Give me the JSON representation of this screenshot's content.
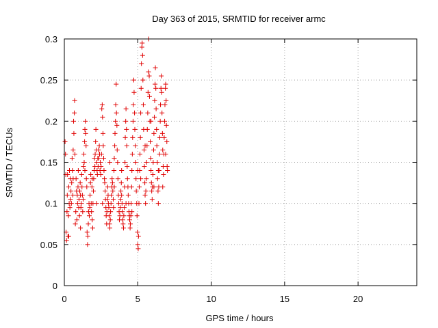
{
  "chart_data": {
    "type": "scatter",
    "title": "Day 363 of 2015, SRMTID for receiver armc",
    "xlabel": "GPS time / hours",
    "ylabel": "SRMTID / TECUs",
    "xlim": [
      0,
      24
    ],
    "ylim": [
      0,
      0.3
    ],
    "x_ticks": [
      0,
      5,
      10,
      15,
      20
    ],
    "x_tick_labels": [
      "0",
      "5",
      "10",
      "15",
      "20"
    ],
    "y_ticks": [
      0,
      0.05,
      0.1,
      0.15,
      0.2,
      0.25,
      0.3
    ],
    "y_tick_labels": [
      "0",
      "0.05",
      "0.1",
      "0.15",
      "0.2",
      "0.25",
      "0.3"
    ],
    "grid": true,
    "legend": "none",
    "marker": "plus",
    "series": [
      {
        "color": "#e00000",
        "points": [
          [
            0.05,
            0.175
          ],
          [
            0.08,
            0.16
          ],
          [
            0.1,
            0.135
          ],
          [
            0.12,
            0.065
          ],
          [
            0.15,
            0.055
          ],
          [
            0.18,
            0.09
          ],
          [
            0.2,
            0.11
          ],
          [
            0.22,
            0.135
          ],
          [
            0.25,
            0.06
          ],
          [
            0.28,
            0.085
          ],
          [
            0.3,
            0.12
          ],
          [
            0.33,
            0.1
          ],
          [
            0.35,
            0.14
          ],
          [
            0.38,
            0.095
          ],
          [
            0.4,
            0.13
          ],
          [
            0.42,
            0.105
          ],
          [
            0.45,
            0.115
          ],
          [
            0.48,
            0.1
          ],
          [
            0.5,
            0.125
          ],
          [
            0.53,
            0.155
          ],
          [
            0.55,
            0.14
          ],
          [
            0.58,
            0.11
          ],
          [
            0.6,
            0.165
          ],
          [
            0.63,
            0.2
          ],
          [
            0.65,
            0.185
          ],
          [
            0.68,
            0.21
          ],
          [
            0.7,
            0.225
          ],
          [
            0.72,
            0.16
          ],
          [
            0.75,
            0.075
          ],
          [
            0.78,
            0.09
          ],
          [
            0.8,
            0.13
          ],
          [
            0.83,
            0.115
          ],
          [
            0.85,
            0.08
          ],
          [
            0.88,
            0.11
          ],
          [
            0.9,
            0.1
          ],
          [
            0.93,
            0.12
          ],
          [
            0.95,
            0.14
          ],
          [
            0.98,
            0.095
          ],
          [
            1.0,
            0.105
          ],
          [
            1.03,
            0.085
          ],
          [
            1.05,
            0.115
          ],
          [
            1.08,
            0.125
          ],
          [
            1.1,
            0.11
          ],
          [
            1.13,
            0.095
          ],
          [
            1.15,
            0.1
          ],
          [
            1.18,
            0.135
          ],
          [
            1.2,
            0.12
          ],
          [
            1.23,
            0.11
          ],
          [
            1.25,
            0.09
          ],
          [
            1.28,
            0.105
          ],
          [
            1.3,
            0.145
          ],
          [
            1.33,
            0.16
          ],
          [
            1.35,
            0.15
          ],
          [
            1.38,
            0.175
          ],
          [
            1.4,
            0.19
          ],
          [
            1.43,
            0.2
          ],
          [
            1.45,
            0.185
          ],
          [
            1.48,
            0.17
          ],
          [
            1.5,
            0.13
          ],
          [
            1.53,
            0.12
          ],
          [
            1.55,
            0.065
          ],
          [
            1.58,
            0.05
          ],
          [
            1.6,
            0.06
          ],
          [
            1.63,
            0.075
          ],
          [
            1.65,
            0.09
          ],
          [
            1.68,
            0.1
          ],
          [
            1.7,
            0.085
          ],
          [
            1.73,
            0.095
          ],
          [
            1.75,
            0.11
          ],
          [
            1.78,
            0.125
          ],
          [
            1.8,
            0.135
          ],
          [
            1.83,
            0.1
          ],
          [
            1.85,
            0.09
          ],
          [
            1.88,
            0.12
          ],
          [
            1.9,
            0.08
          ],
          [
            1.93,
            0.07
          ],
          [
            1.95,
            0.1
          ],
          [
            1.98,
            0.115
          ],
          [
            2.0,
            0.13
          ],
          [
            2.03,
            0.14
          ],
          [
            2.05,
            0.155
          ],
          [
            2.08,
            0.145
          ],
          [
            2.1,
            0.16
          ],
          [
            2.13,
            0.175
          ],
          [
            2.15,
            0.19
          ],
          [
            2.18,
            0.165
          ],
          [
            2.2,
            0.15
          ],
          [
            2.23,
            0.14
          ],
          [
            2.25,
            0.135
          ],
          [
            2.28,
            0.155
          ],
          [
            2.3,
            0.145
          ],
          [
            2.33,
            0.165
          ],
          [
            2.35,
            0.155
          ],
          [
            2.38,
            0.17
          ],
          [
            2.4,
            0.16
          ],
          [
            2.43,
            0.14
          ],
          [
            2.45,
            0.15
          ],
          [
            2.48,
            0.135
          ],
          [
            2.5,
            0.145
          ],
          [
            2.53,
            0.16
          ],
          [
            2.55,
            0.215
          ],
          [
            2.58,
            0.22
          ],
          [
            2.6,
            0.205
          ],
          [
            2.63,
            0.185
          ],
          [
            2.65,
            0.17
          ],
          [
            2.68,
            0.155
          ],
          [
            2.7,
            0.14
          ],
          [
            2.73,
            0.13
          ],
          [
            2.75,
            0.125
          ],
          [
            2.78,
            0.115
          ],
          [
            2.8,
            0.105
          ],
          [
            2.83,
            0.095
          ],
          [
            2.85,
            0.085
          ],
          [
            2.88,
            0.075
          ],
          [
            2.9,
            0.09
          ],
          [
            2.93,
            0.105
          ],
          [
            2.95,
            0.12
          ],
          [
            2.98,
            0.11
          ],
          [
            3.0,
            0.1
          ],
          [
            3.03,
            0.095
          ],
          [
            3.05,
            0.085
          ],
          [
            3.08,
            0.075
          ],
          [
            3.1,
            0.07
          ],
          [
            3.13,
            0.08
          ],
          [
            3.15,
            0.09
          ],
          [
            3.18,
            0.1
          ],
          [
            3.2,
            0.11
          ],
          [
            3.23,
            0.12
          ],
          [
            3.25,
            0.13
          ],
          [
            3.28,
            0.125
          ],
          [
            3.3,
            0.115
          ],
          [
            3.33,
            0.105
          ],
          [
            3.35,
            0.095
          ],
          [
            3.38,
            0.14
          ],
          [
            3.4,
            0.155
          ],
          [
            3.43,
            0.17
          ],
          [
            3.45,
            0.185
          ],
          [
            3.48,
            0.2
          ],
          [
            3.5,
            0.22
          ],
          [
            3.53,
            0.245
          ],
          [
            3.55,
            0.21
          ],
          [
            3.58,
            0.195
          ],
          [
            3.6,
            0.165
          ],
          [
            3.63,
            0.15
          ],
          [
            3.65,
            0.13
          ],
          [
            3.68,
            0.11
          ],
          [
            3.7,
            0.1
          ],
          [
            3.73,
            0.09
          ],
          [
            3.75,
            0.08
          ],
          [
            3.78,
            0.085
          ],
          [
            3.8,
            0.095
          ],
          [
            3.83,
            0.105
          ],
          [
            3.85,
            0.115
          ],
          [
            3.88,
            0.125
          ],
          [
            3.9,
            0.11
          ],
          [
            3.93,
            0.1
          ],
          [
            3.95,
            0.09
          ],
          [
            3.98,
            0.08
          ],
          [
            4.0,
            0.075
          ],
          [
            4.03,
            0.07
          ],
          [
            4.05,
            0.085
          ],
          [
            4.08,
            0.095
          ],
          [
            4.1,
            0.12
          ],
          [
            4.13,
            0.15
          ],
          [
            4.15,
            0.18
          ],
          [
            4.18,
            0.2
          ],
          [
            4.2,
            0.215
          ],
          [
            4.23,
            0.19
          ],
          [
            4.25,
            0.17
          ],
          [
            4.28,
            0.145
          ],
          [
            4.3,
            0.13
          ],
          [
            4.33,
            0.12
          ],
          [
            4.35,
            0.11
          ],
          [
            4.38,
            0.1
          ],
          [
            4.4,
            0.09
          ],
          [
            4.43,
            0.085
          ],
          [
            4.45,
            0.08
          ],
          [
            4.48,
            0.07
          ],
          [
            4.5,
            0.075
          ],
          [
            4.53,
            0.085
          ],
          [
            4.55,
            0.1
          ],
          [
            4.58,
            0.12
          ],
          [
            4.6,
            0.14
          ],
          [
            4.63,
            0.16
          ],
          [
            4.65,
            0.18
          ],
          [
            4.68,
            0.2
          ],
          [
            4.7,
            0.22
          ],
          [
            4.73,
            0.25
          ],
          [
            4.75,
            0.235
          ],
          [
            4.78,
            0.21
          ],
          [
            4.8,
            0.19
          ],
          [
            4.83,
            0.17
          ],
          [
            4.85,
            0.15
          ],
          [
            4.88,
            0.13
          ],
          [
            4.9,
            0.115
          ],
          [
            4.93,
            0.1
          ],
          [
            4.95,
            0.085
          ],
          [
            4.98,
            0.065
          ],
          [
            5.0,
            0.05
          ],
          [
            5.03,
            0.045
          ],
          [
            5.05,
            0.06
          ],
          [
            5.08,
            0.1
          ],
          [
            5.1,
            0.12
          ],
          [
            5.13,
            0.14
          ],
          [
            5.15,
            0.16
          ],
          [
            5.18,
            0.18
          ],
          [
            5.2,
            0.21
          ],
          [
            5.23,
            0.24
          ],
          [
            5.25,
            0.27
          ],
          [
            5.28,
            0.29
          ],
          [
            5.3,
            0.295
          ],
          [
            5.33,
            0.28
          ],
          [
            5.35,
            0.25
          ],
          [
            5.38,
            0.22
          ],
          [
            5.4,
            0.19
          ],
          [
            5.43,
            0.165
          ],
          [
            5.45,
            0.145
          ],
          [
            5.48,
            0.125
          ],
          [
            5.5,
            0.11
          ],
          [
            5.53,
            0.1
          ],
          [
            5.55,
            0.115
          ],
          [
            5.58,
            0.13
          ],
          [
            5.6,
            0.15
          ],
          [
            5.63,
            0.17
          ],
          [
            5.65,
            0.19
          ],
          [
            5.68,
            0.21
          ],
          [
            5.7,
            0.235
          ],
          [
            5.73,
            0.26
          ],
          [
            5.75,
            0.3
          ],
          [
            5.78,
            0.255
          ],
          [
            5.8,
            0.23
          ],
          [
            5.83,
            0.2
          ],
          [
            5.85,
            0.175
          ],
          [
            5.88,
            0.155
          ],
          [
            5.9,
            0.14
          ],
          [
            5.93,
            0.125
          ],
          [
            5.95,
            0.115
          ],
          [
            5.98,
            0.105
          ],
          [
            6.0,
            0.12
          ],
          [
            6.03,
            0.135
          ],
          [
            6.05,
            0.15
          ],
          [
            6.08,
            0.165
          ],
          [
            6.1,
            0.185
          ],
          [
            6.13,
            0.205
          ],
          [
            6.15,
            0.225
          ],
          [
            6.18,
            0.245
          ],
          [
            6.2,
            0.265
          ],
          [
            6.23,
            0.24
          ],
          [
            6.25,
            0.215
          ],
          [
            6.28,
            0.19
          ],
          [
            6.3,
            0.17
          ],
          [
            6.33,
            0.15
          ],
          [
            6.35,
            0.13
          ],
          [
            6.38,
            0.115
          ],
          [
            6.4,
            0.1
          ],
          [
            6.43,
            0.12
          ],
          [
            6.45,
            0.14
          ],
          [
            6.48,
            0.16
          ],
          [
            6.5,
            0.18
          ],
          [
            6.53,
            0.2
          ],
          [
            6.55,
            0.22
          ],
          [
            6.58,
            0.24
          ],
          [
            6.6,
            0.255
          ],
          [
            6.63,
            0.235
          ],
          [
            6.65,
            0.21
          ],
          [
            6.68,
            0.185
          ],
          [
            6.7,
            0.165
          ],
          [
            6.73,
            0.145
          ],
          [
            6.75,
            0.135
          ],
          [
            6.78,
            0.16
          ],
          [
            6.8,
            0.18
          ],
          [
            6.83,
            0.2
          ],
          [
            6.85,
            0.22
          ],
          [
            6.88,
            0.24
          ],
          [
            6.9,
            0.245
          ],
          [
            6.93,
            0.225
          ],
          [
            6.95,
            0.195
          ],
          [
            6.98,
            0.175
          ],
          [
            7.0,
            0.145
          ],
          [
            7.02,
            0.14
          ],
          [
            0.3,
            0.06
          ],
          [
            0.6,
            0.13
          ],
          [
            1.1,
            0.07
          ],
          [
            1.4,
            0.14
          ],
          [
            1.9,
            0.13
          ],
          [
            2.2,
            0.1
          ],
          [
            2.6,
            0.1
          ],
          [
            3.1,
            0.15
          ],
          [
            3.4,
            0.12
          ],
          [
            3.9,
            0.14
          ],
          [
            4.2,
            0.1
          ],
          [
            4.6,
            0.09
          ],
          [
            5.0,
            0.14
          ],
          [
            5.2,
            0.13
          ],
          [
            5.5,
            0.17
          ],
          [
            5.9,
            0.2
          ],
          [
            6.1,
            0.12
          ],
          [
            6.4,
            0.14
          ],
          [
            6.7,
            0.12
          ],
          [
            6.9,
            0.16
          ]
        ]
      }
    ]
  }
}
